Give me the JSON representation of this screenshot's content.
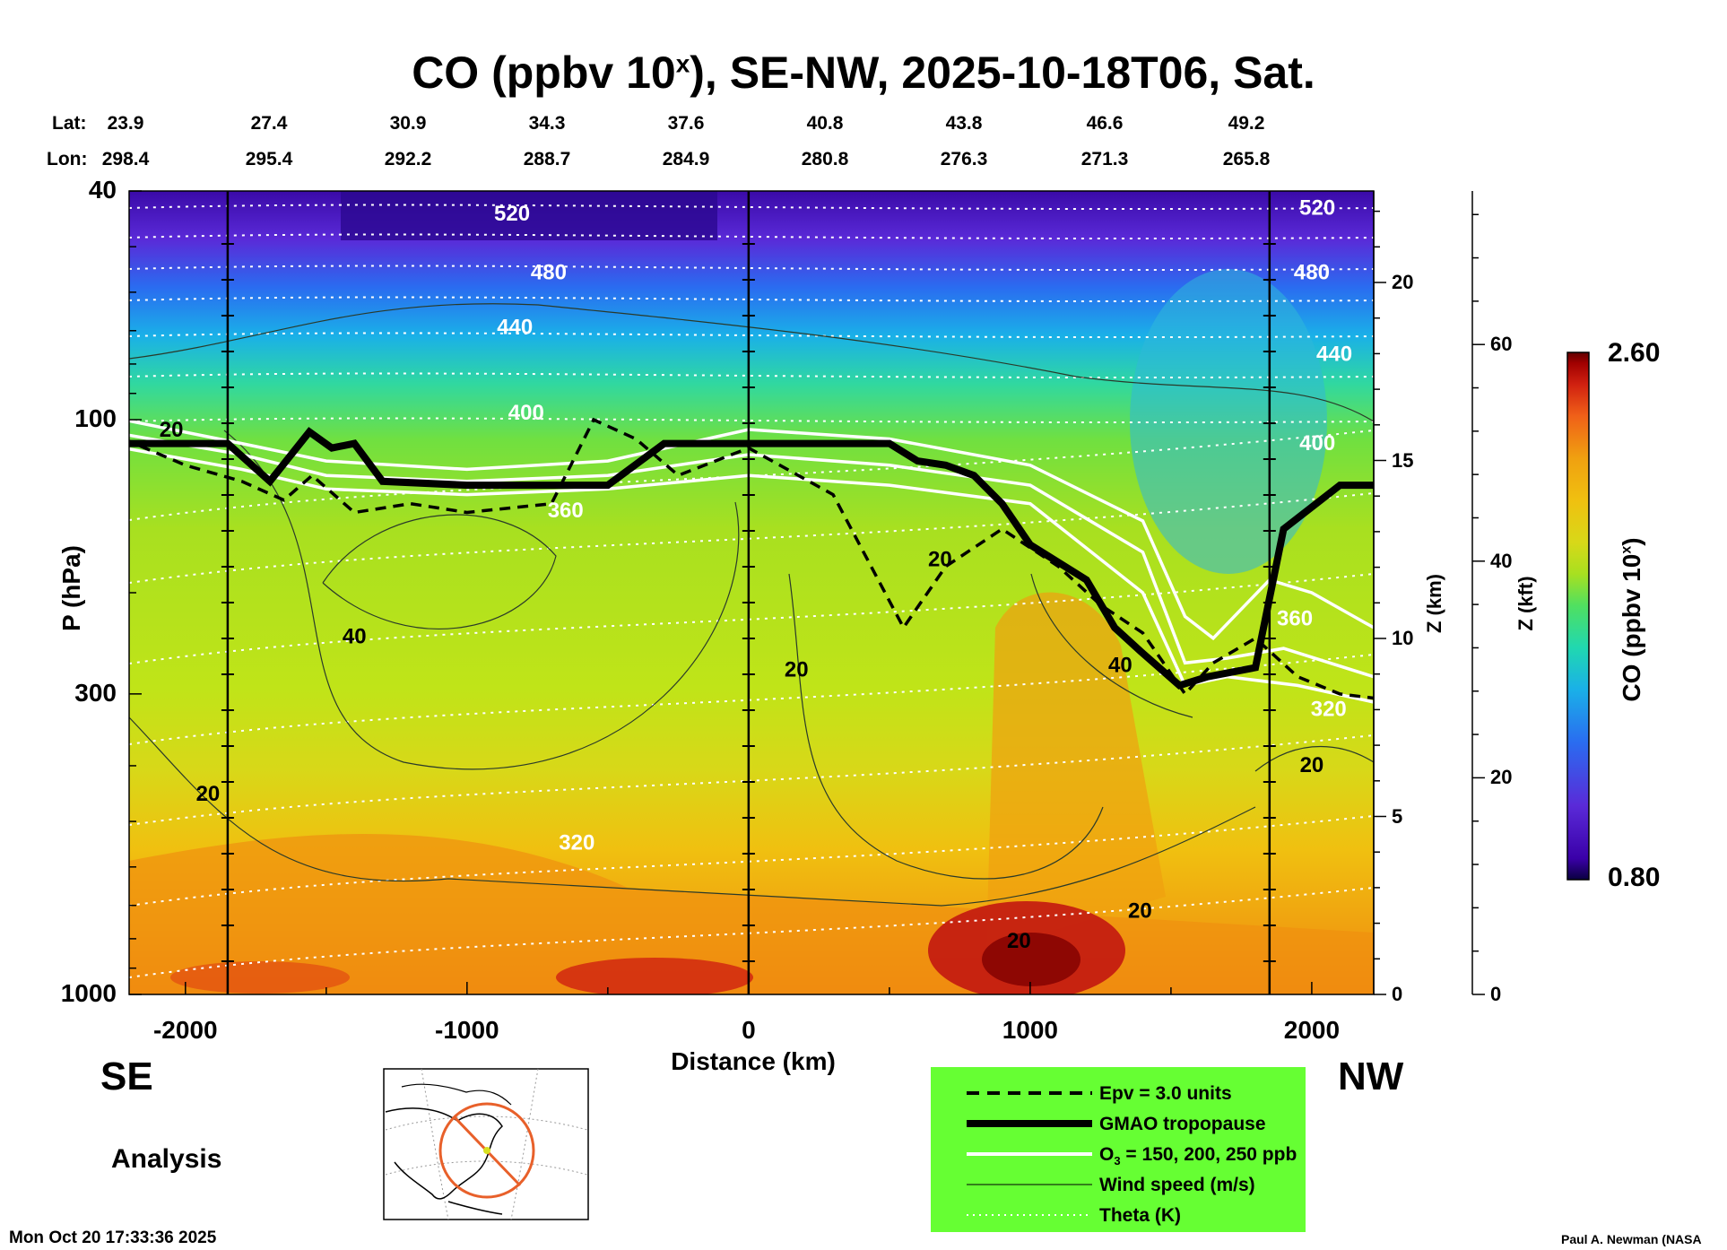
{
  "title": {
    "prefix": "CO (ppbv 10",
    "sup": "x",
    "suffix": "), SE-NW, 2025-10-18T06, Sat."
  },
  "lat_row": {
    "label": "Lat:",
    "values": [
      "23.9",
      "27.4",
      "30.9",
      "34.3",
      "37.6",
      "40.8",
      "43.8",
      "46.6",
      "49.2"
    ]
  },
  "lon_row": {
    "label": "Lon:",
    "values": [
      "298.4",
      "295.4",
      "292.2",
      "288.7",
      "284.9",
      "280.8",
      "276.3",
      "271.3",
      "265.8"
    ]
  },
  "chart_data": {
    "type": "heatmap",
    "xlabel": "Distance (km)",
    "ylabel": "P (hPa)",
    "xlim": [
      -2200,
      2220
    ],
    "ylim_hpa": [
      1000,
      40
    ],
    "x_ticks": [
      -2000,
      -1000,
      0,
      1000,
      2000
    ],
    "p_ticks": [
      40,
      100,
      300,
      1000
    ],
    "z_km_label": "Z (km)",
    "z_km_ticks": [
      0,
      5,
      10,
      15,
      20
    ],
    "z_kft_label": "Z (kft)",
    "z_kft_ticks": [
      0,
      20,
      40,
      60
    ],
    "colorbar": {
      "label": "CO (ppbv 10",
      "label_sup": "x",
      "label_end": ")",
      "min": "0.80",
      "max": "2.60",
      "colors": [
        "#0a0040",
        "#3a00a8",
        "#5a2ad8",
        "#2a6cf0",
        "#1ab0e8",
        "#20d8b0",
        "#50e060",
        "#a8e020",
        "#d8d818",
        "#f0c010",
        "#f0a010",
        "#f06018",
        "#d02010",
        "#a00000",
        "#600000"
      ]
    },
    "vertical_lines_km": [
      -1850,
      0,
      1850
    ],
    "theta_labels": [
      {
        "text": "520",
        "x": -840,
        "p": 45
      },
      {
        "text": "480",
        "x": -710,
        "p": 57
      },
      {
        "text": "440",
        "x": -830,
        "p": 71
      },
      {
        "text": "400",
        "x": -790,
        "p": 100
      },
      {
        "text": "360",
        "x": -650,
        "p": 148
      },
      {
        "text": "320",
        "x": -610,
        "p": 560
      },
      {
        "text": "520",
        "x": 2020,
        "p": 44
      },
      {
        "text": "480",
        "x": 2000,
        "p": 57
      },
      {
        "text": "440",
        "x": 2080,
        "p": 79
      },
      {
        "text": "400",
        "x": 2020,
        "p": 113
      },
      {
        "text": "360",
        "x": 1940,
        "p": 228
      },
      {
        "text": "320",
        "x": 2060,
        "p": 328
      }
    ],
    "wind_labels": [
      {
        "text": "20",
        "x": -2050,
        "p": 107
      },
      {
        "text": "40",
        "x": -1400,
        "p": 245
      },
      {
        "text": "20",
        "x": -1920,
        "p": 460
      },
      {
        "text": "20",
        "x": 170,
        "p": 280
      },
      {
        "text": "20",
        "x": 680,
        "p": 180
      },
      {
        "text": "40",
        "x": 1320,
        "p": 275
      },
      {
        "text": "20",
        "x": 2000,
        "p": 410
      },
      {
        "text": "20",
        "x": 1390,
        "p": 735
      },
      {
        "text": "20",
        "x": 960,
        "p": 830
      }
    ],
    "tropopause_km": [
      [
        -2220,
        110
      ],
      [
        -1850,
        110
      ],
      [
        -1700,
        128
      ],
      [
        -1560,
        105
      ],
      [
        -1480,
        112
      ],
      [
        -1400,
        110
      ],
      [
        -1300,
        128
      ],
      [
        -1000,
        130
      ],
      [
        -500,
        130
      ],
      [
        -300,
        110
      ],
      [
        0,
        110
      ],
      [
        500,
        110
      ],
      [
        600,
        118
      ],
      [
        700,
        120
      ],
      [
        800,
        125
      ],
      [
        900,
        140
      ],
      [
        1000,
        165
      ],
      [
        1200,
        190
      ],
      [
        1300,
        230
      ],
      [
        1400,
        255
      ],
      [
        1530,
        290
      ],
      [
        1630,
        280
      ],
      [
        1800,
        270
      ],
      [
        1900,
        155
      ],
      [
        2100,
        130
      ],
      [
        2220,
        130
      ]
    ],
    "epv_km": [
      [
        -2220,
        108
      ],
      [
        -2000,
        120
      ],
      [
        -1800,
        128
      ],
      [
        -1650,
        138
      ],
      [
        -1550,
        125
      ],
      [
        -1400,
        145
      ],
      [
        -1200,
        140
      ],
      [
        -1000,
        145
      ],
      [
        -700,
        140
      ],
      [
        -550,
        100
      ],
      [
        -400,
        108
      ],
      [
        -250,
        125
      ],
      [
        0,
        112
      ],
      [
        300,
        135
      ],
      [
        550,
        230
      ],
      [
        700,
        180
      ],
      [
        900,
        155
      ],
      [
        1100,
        180
      ],
      [
        1250,
        210
      ],
      [
        1400,
        235
      ],
      [
        1550,
        300
      ],
      [
        1650,
        265
      ],
      [
        1800,
        240
      ],
      [
        1950,
        280
      ],
      [
        2100,
        300
      ],
      [
        2220,
        305
      ]
    ],
    "o3_km": [
      [
        [
          -2220,
          100
        ],
        [
          -1800,
          110
        ],
        [
          -1500,
          118
        ],
        [
          -1000,
          122
        ],
        [
          -500,
          118
        ],
        [
          0,
          104
        ],
        [
          500,
          108
        ],
        [
          1000,
          120
        ],
        [
          1400,
          150
        ],
        [
          1550,
          220
        ],
        [
          1650,
          240
        ],
        [
          1850,
          190
        ],
        [
          2000,
          200
        ],
        [
          2220,
          230
        ]
      ],
      [
        [
          -2220,
          106
        ],
        [
          -1800,
          115
        ],
        [
          -1500,
          125
        ],
        [
          -1000,
          128
        ],
        [
          -500,
          125
        ],
        [
          0,
          115
        ],
        [
          500,
          120
        ],
        [
          1000,
          130
        ],
        [
          1400,
          170
        ],
        [
          1550,
          265
        ],
        [
          1700,
          260
        ],
        [
          1900,
          250
        ],
        [
          2220,
          280
        ]
      ],
      [
        [
          -2220,
          112
        ],
        [
          -1800,
          122
        ],
        [
          -1500,
          132
        ],
        [
          -1000,
          135
        ],
        [
          -500,
          132
        ],
        [
          0,
          125
        ],
        [
          500,
          130
        ],
        [
          1000,
          140
        ],
        [
          1400,
          200
        ],
        [
          1550,
          290
        ],
        [
          1700,
          280
        ],
        [
          1950,
          290
        ],
        [
          2220,
          310
        ]
      ]
    ]
  },
  "directions": {
    "left": "SE",
    "right": "NW"
  },
  "analysis_label": "Analysis",
  "timestamp": "Mon Oct 20 17:33:36 2025",
  "credit": "Paul A. Newman (NASA",
  "legend": {
    "items": [
      {
        "text": "Epv = 3.0 units"
      },
      {
        "text": "GMAO tropopause"
      },
      {
        "text": "O",
        "sub": "3",
        "rest": " = 150, 200, 250 ppb"
      },
      {
        "text": "Wind speed (m/s)"
      },
      {
        "text": "Theta (K)"
      }
    ]
  }
}
